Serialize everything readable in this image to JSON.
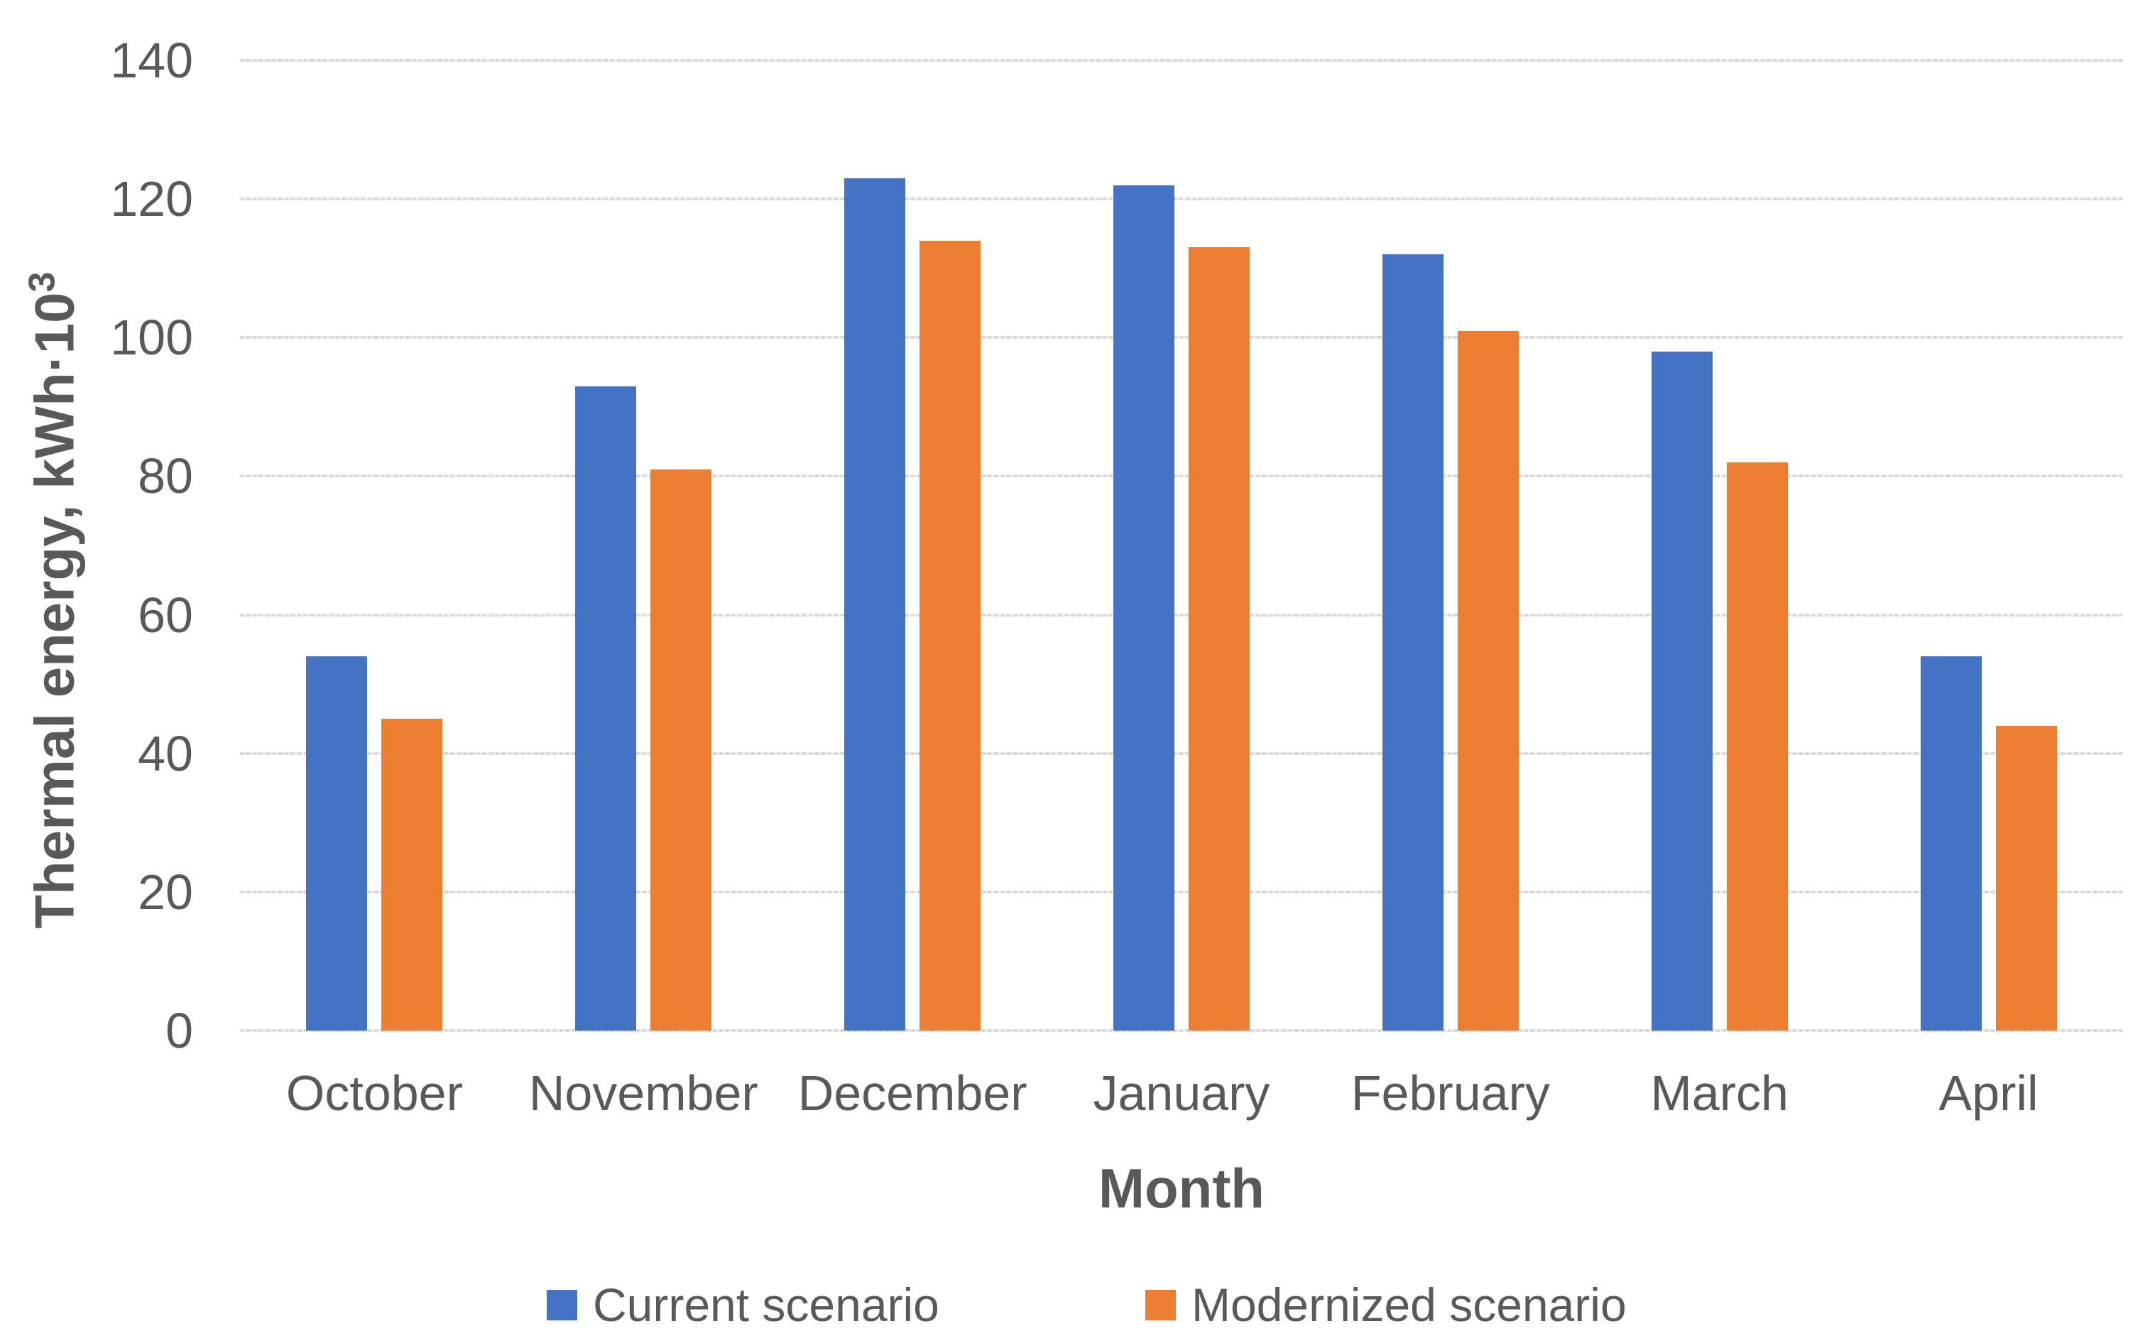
{
  "chart_data": {
    "type": "bar",
    "title": "",
    "categories": [
      "October",
      "November",
      "December",
      "January",
      "February",
      "March",
      "April"
    ],
    "series": [
      {
        "name": "Current scenario",
        "color": "#4472C4",
        "values": [
          54,
          93,
          123,
          122,
          112,
          98,
          54
        ]
      },
      {
        "name": "Modernized scenario",
        "color": "#ED7D31",
        "values": [
          45,
          81,
          114,
          113,
          101,
          82,
          44
        ]
      }
    ],
    "xlabel": "Month",
    "ylabel": "Thermal energy, kWh·10³",
    "ylabel_base": "Thermal energy, kWh·10",
    "ylabel_exponent": "3",
    "ylim": [
      0,
      140
    ],
    "ytick_step": 20,
    "yticks": [
      "0",
      "20",
      "40",
      "60",
      "80",
      "100",
      "120",
      "140"
    ],
    "grid": "horizontal-dashed",
    "legend_position": "bottom",
    "colors": {
      "grid": "#D9D9D9",
      "text": "#595959",
      "background": "#FFFFFF"
    }
  }
}
